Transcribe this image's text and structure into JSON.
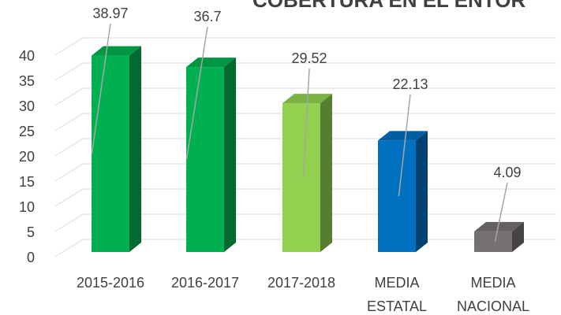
{
  "chart_data": {
    "type": "bar3d",
    "title": "COBERTURA EN EL ENTOR",
    "categories": [
      "2015-2016",
      "2016-2017",
      "2017-2018",
      "MEDIA ESTATAL",
      "MEDIA NACIONAL"
    ],
    "values": [
      38.97,
      36.7,
      29.52,
      22.13,
      4.09
    ],
    "colors": [
      "#00b050",
      "#00b050",
      "#92d050",
      "#0070c0",
      "#767171"
    ],
    "ylim": [
      0,
      40
    ],
    "yticks": [
      0,
      5,
      10,
      15,
      20,
      25,
      30,
      35,
      40
    ],
    "grid": true
  }
}
